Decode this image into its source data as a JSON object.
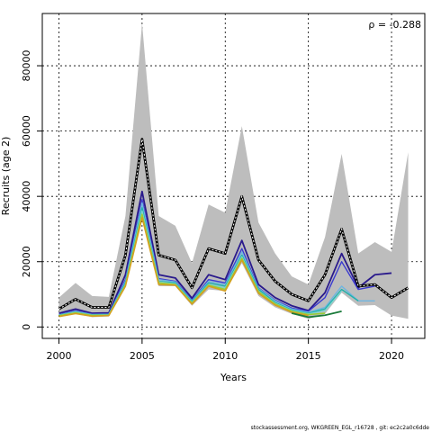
{
  "chart_data": {
    "type": "line",
    "xlabel": "Years",
    "ylabel": "Recruits (age 2)",
    "annotation": "ρ = -0.288",
    "footer": "stockassessment.org, WKGREEN_EGL_r16728 , git: ec2c2a0c6dde",
    "xlim": [
      1999,
      2022
    ],
    "ylim": [
      -3500,
      96000
    ],
    "x_ticks": [
      2000,
      2005,
      2010,
      2015,
      2020
    ],
    "y_ticks": [
      0,
      20000,
      40000,
      60000,
      80000
    ],
    "grid": true,
    "colors": {
      "band": "#bdbdbd",
      "base": "#000000",
      "peels": [
        "#2a1a8c",
        "#3a3ad0",
        "#6fb6e0",
        "#20b2aa",
        "#7fd4cf",
        "#9acd32",
        "#d4a020",
        "#1a7a3a"
      ]
    },
    "band": {
      "x": [
        2000,
        2001,
        2002,
        2003,
        2004,
        2005,
        2006,
        2007,
        2008,
        2009,
        2010,
        2011,
        2012,
        2013,
        2014,
        2015,
        2016,
        2017,
        2018,
        2019,
        2020,
        2021
      ],
      "upper": [
        9000,
        13500,
        9500,
        9200,
        34000,
        93000,
        34000,
        31000,
        19500,
        37500,
        35000,
        61500,
        32000,
        22500,
        15500,
        13000,
        27500,
        53000,
        22500,
        26000,
        23000,
        53500
      ],
      "lower": [
        3000,
        4000,
        3000,
        3200,
        12000,
        33500,
        12500,
        12500,
        6500,
        11500,
        11000,
        19500,
        9500,
        6000,
        4000,
        2500,
        4000,
        10500,
        6500,
        6700,
        3500,
        2500
      ]
    },
    "series": [
      {
        "x": [
          2000,
          2001,
          2002,
          2003,
          2004,
          2005,
          2006,
          2007,
          2008,
          2009,
          2010,
          2011,
          2012,
          2013,
          2014,
          2015,
          2016,
          2017,
          2018,
          2019,
          2020,
          2021
        ],
        "values": [
          5500,
          8500,
          6000,
          6000,
          22000,
          57500,
          22000,
          20500,
          12000,
          24000,
          22500,
          40000,
          20500,
          14000,
          10000,
          8000,
          16000,
          30000,
          12500,
          13000,
          9000,
          12000
        ],
        "color": "#000000",
        "dashed": true,
        "width": 2.2
      },
      {
        "x": [
          2000,
          2001,
          2002,
          2003,
          2004,
          2005,
          2006,
          2007,
          2008,
          2009,
          2010,
          2011,
          2012,
          2013,
          2014,
          2015,
          2016,
          2017,
          2018,
          2019,
          2020
        ],
        "values": [
          4200,
          5500,
          4200,
          4300,
          16000,
          41500,
          16000,
          15000,
          8800,
          16000,
          14500,
          26500,
          13000,
          9000,
          6500,
          5000,
          10500,
          22500,
          12000,
          16000,
          16500
        ],
        "color": "#2a1a8c",
        "dashed": false,
        "width": 1.8
      },
      {
        "x": [
          2000,
          2001,
          2002,
          2003,
          2004,
          2005,
          2006,
          2007,
          2008,
          2009,
          2010,
          2011,
          2012,
          2013,
          2014,
          2015,
          2016,
          2017,
          2018,
          2019
        ],
        "values": [
          3800,
          5000,
          3900,
          4000,
          14500,
          39000,
          14800,
          14000,
          8200,
          14500,
          13500,
          24000,
          12000,
          8200,
          5800,
          4800,
          9000,
          20000,
          11500,
          12500
        ],
        "color": "#3a3ad0",
        "dashed": false,
        "width": 1.4
      },
      {
        "x": [
          2000,
          2001,
          2002,
          2003,
          2004,
          2005,
          2006,
          2007,
          2008,
          2009,
          2010,
          2011,
          2012,
          2013,
          2014,
          2015,
          2016,
          2017,
          2018,
          2019
        ],
        "values": [
          3700,
          4800,
          3800,
          3900,
          14000,
          38000,
          14500,
          13800,
          8000,
          14000,
          13000,
          23000,
          11800,
          8000,
          5500,
          4500,
          6000,
          12500,
          8000,
          8000
        ],
        "color": "#6fb6e0",
        "dashed": false,
        "width": 1.4
      },
      {
        "x": [
          2000,
          2001,
          2002,
          2003,
          2004,
          2005,
          2006,
          2007,
          2008,
          2009,
          2010,
          2011,
          2012,
          2013,
          2014,
          2015,
          2016,
          2017,
          2018
        ],
        "values": [
          3600,
          4600,
          3700,
          3800,
          13500,
          36500,
          14000,
          13500,
          7800,
          13500,
          12500,
          22000,
          11500,
          7500,
          5200,
          4200,
          5500,
          11500,
          8000
        ],
        "color": "#20b2aa",
        "dashed": false,
        "width": 1.4
      },
      {
        "x": [
          2000,
          2001,
          2002,
          2003,
          2004,
          2005,
          2006,
          2007,
          2008,
          2009,
          2010,
          2011,
          2012,
          2013,
          2014,
          2015,
          2016,
          2017
        ],
        "values": [
          3500,
          4500,
          3600,
          3700,
          13000,
          35500,
          13800,
          13200,
          7500,
          13000,
          12000,
          21500,
          11000,
          7200,
          5000,
          4000,
          5000,
          11000
        ],
        "color": "#7fd4cf",
        "dashed": false,
        "width": 1.4
      },
      {
        "x": [
          2000,
          2001,
          2002,
          2003,
          2004,
          2005,
          2006,
          2007,
          2008,
          2009,
          2010,
          2011,
          2012,
          2013,
          2014,
          2015,
          2016
        ],
        "values": [
          3400,
          4300,
          3500,
          3600,
          12800,
          34500,
          13500,
          13000,
          7300,
          12800,
          11500,
          21000,
          10800,
          7000,
          4800,
          3800,
          4200
        ],
        "color": "#9acd32",
        "dashed": false,
        "width": 1.6
      },
      {
        "x": [
          2000,
          2001,
          2002,
          2003,
          2004,
          2005,
          2006,
          2007,
          2008,
          2009,
          2010,
          2011,
          2012,
          2013,
          2014,
          2015
        ],
        "values": [
          3200,
          4100,
          3300,
          3500,
          12500,
          33500,
          13000,
          12800,
          7000,
          12500,
          11000,
          20500,
          10300,
          6700,
          4500,
          3500
        ],
        "color": "#d4a020",
        "dashed": false,
        "width": 1.6
      },
      {
        "x": [
          2014,
          2015,
          2016,
          2017
        ],
        "values": [
          4200,
          3000,
          3600,
          4800
        ],
        "color": "#1a7a3a",
        "dashed": false,
        "width": 1.8
      }
    ]
  }
}
